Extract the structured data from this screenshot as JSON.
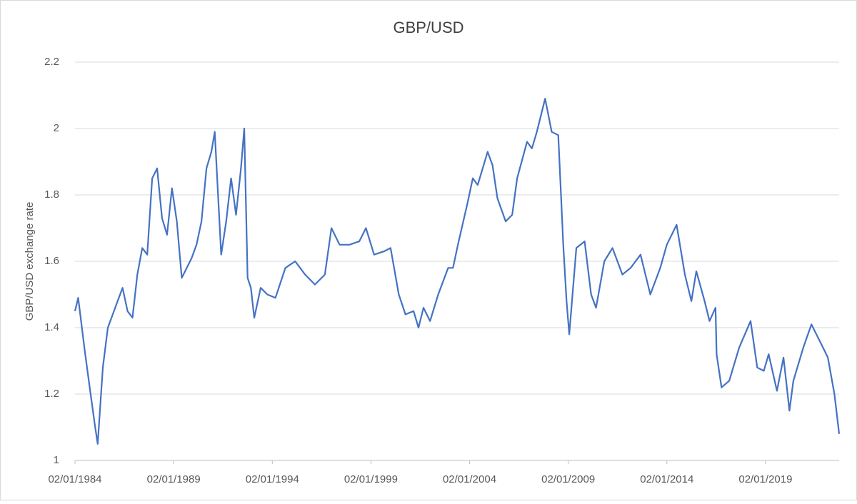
{
  "chart_data": {
    "type": "line",
    "title": "GBP/USD",
    "y_label": "GBP/USD exchange rate",
    "x": [
      "02/01/1984",
      "01/03/1984",
      "01/07/1984",
      "01/10/1984",
      "01/01/1985",
      "26/02/1985",
      "01/06/1985",
      "01/09/1985",
      "01/12/1985",
      "01/03/1986",
      "01/06/1986",
      "01/09/1986",
      "01/12/1986",
      "01/03/1987",
      "01/06/1987",
      "01/09/1987",
      "01/12/1987",
      "01/03/1988",
      "01/06/1988",
      "01/09/1988",
      "01/12/1988",
      "01/03/1989",
      "01/06/1989",
      "01/09/1989",
      "01/12/1989",
      "01/03/1990",
      "01/06/1990",
      "01/09/1990",
      "01/12/1990",
      "01/02/1991",
      "01/06/1991",
      "01/09/1991",
      "01/12/1991",
      "01/03/1992",
      "01/06/1992",
      "01/08/1992",
      "01/10/1992",
      "01/12/1992",
      "01/02/1993",
      "01/06/1993",
      "01/10/1993",
      "01/03/1994",
      "01/09/1994",
      "01/03/1995",
      "01/09/1995",
      "01/03/1996",
      "01/09/1996",
      "01/01/1997",
      "01/06/1997",
      "01/12/1997",
      "01/06/1998",
      "01/10/1998",
      "01/03/1999",
      "01/09/1999",
      "01/01/2000",
      "01/06/2000",
      "01/10/2000",
      "01/03/2001",
      "01/06/2001",
      "01/09/2001",
      "01/01/2002",
      "01/06/2002",
      "01/12/2002",
      "01/03/2003",
      "01/06/2003",
      "01/12/2003",
      "01/03/2004",
      "01/06/2004",
      "01/12/2004",
      "01/03/2005",
      "01/06/2005",
      "01/11/2005",
      "01/03/2006",
      "01/06/2006",
      "01/12/2006",
      "01/03/2007",
      "01/06/2007",
      "01/11/2007",
      "01/03/2008",
      "01/07/2008",
      "01/10/2008",
      "01/12/2008",
      "20/01/2009",
      "01/06/2009",
      "01/11/2009",
      "01/03/2010",
      "01/06/2010",
      "01/11/2010",
      "01/04/2011",
      "01/10/2011",
      "01/03/2012",
      "01/09/2012",
      "01/03/2013",
      "01/09/2013",
      "01/01/2014",
      "01/07/2014",
      "01/12/2014",
      "01/04/2015",
      "01/07/2015",
      "01/12/2015",
      "01/03/2016",
      "20/06/2016",
      "10/07/2016",
      "10/10/2016",
      "01/03/2017",
      "01/09/2017",
      "01/04/2018",
      "01/08/2018",
      "01/12/2018",
      "01/03/2019",
      "01/08/2019",
      "01/12/2019",
      "20/03/2020",
      "01/06/2020",
      "01/12/2020",
      "01/05/2021",
      "01/12/2021",
      "01/03/2022",
      "01/07/2022",
      "26/09/2022"
    ],
    "values": [
      1.45,
      1.49,
      1.33,
      1.22,
      1.11,
      1.05,
      1.28,
      1.4,
      1.44,
      1.48,
      1.52,
      1.45,
      1.43,
      1.56,
      1.64,
      1.62,
      1.85,
      1.88,
      1.73,
      1.68,
      1.82,
      1.72,
      1.55,
      1.58,
      1.61,
      1.65,
      1.72,
      1.88,
      1.93,
      1.99,
      1.62,
      1.72,
      1.85,
      1.74,
      1.88,
      2.0,
      1.55,
      1.52,
      1.43,
      1.52,
      1.5,
      1.49,
      1.58,
      1.6,
      1.56,
      1.53,
      1.56,
      1.7,
      1.65,
      1.65,
      1.66,
      1.7,
      1.62,
      1.63,
      1.64,
      1.5,
      1.44,
      1.45,
      1.4,
      1.46,
      1.42,
      1.5,
      1.58,
      1.58,
      1.65,
      1.78,
      1.85,
      1.83,
      1.93,
      1.89,
      1.79,
      1.72,
      1.74,
      1.85,
      1.96,
      1.94,
      1.99,
      2.09,
      1.99,
      1.98,
      1.65,
      1.48,
      1.38,
      1.64,
      1.66,
      1.5,
      1.46,
      1.6,
      1.64,
      1.56,
      1.58,
      1.62,
      1.5,
      1.58,
      1.65,
      1.71,
      1.56,
      1.48,
      1.57,
      1.48,
      1.42,
      1.46,
      1.32,
      1.22,
      1.24,
      1.34,
      1.42,
      1.28,
      1.27,
      1.32,
      1.21,
      1.31,
      1.15,
      1.24,
      1.34,
      1.41,
      1.34,
      1.31,
      1.2,
      1.08
    ],
    "color": "#4472c4",
    "xlim": [
      "02/01/1984",
      "26/09/2022"
    ],
    "xticks": [
      "02/01/1984",
      "02/01/1989",
      "02/01/1994",
      "02/01/1999",
      "02/01/2004",
      "02/01/2009",
      "02/01/2014",
      "02/01/2019"
    ],
    "ylim": [
      1,
      2.2
    ],
    "yticks": [
      1,
      1.2,
      1.4,
      1.6,
      1.8,
      2,
      2.2
    ],
    "grid": true
  }
}
